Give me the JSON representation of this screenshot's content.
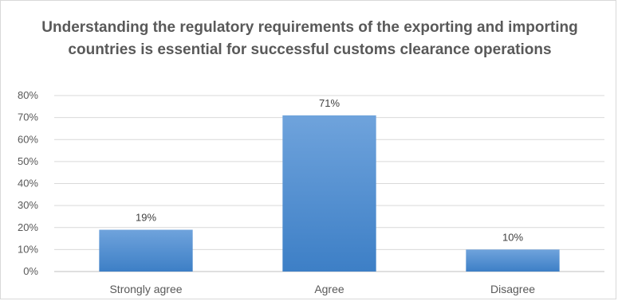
{
  "chart_data": {
    "type": "bar",
    "title": "Understanding the regulatory requirements of the exporting and importing countries is essential for successful customs clearance operations",
    "categories": [
      "Strongly agree",
      "Agree",
      "Disagree"
    ],
    "values": [
      19,
      71,
      10
    ],
    "data_labels": [
      "19%",
      "71%",
      "10%"
    ],
    "y_ticks": [
      "0%",
      "10%",
      "20%",
      "30%",
      "40%",
      "50%",
      "60%",
      "70%",
      "80%"
    ],
    "ylim": [
      0,
      80
    ],
    "grid": true,
    "legend": "none",
    "colors": {
      "bar_top": "#6fa3dc",
      "bar_bottom": "#3d7fc6",
      "grid": "#d9d9d9",
      "axis": "#bfbfbf",
      "text": "#595959"
    }
  }
}
